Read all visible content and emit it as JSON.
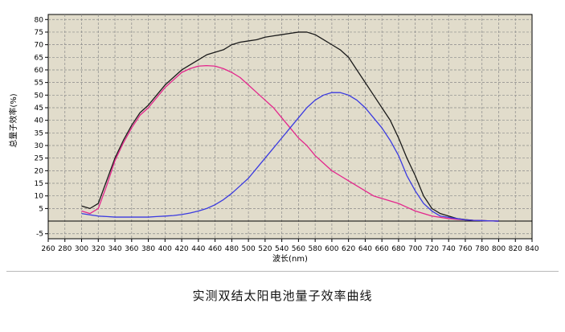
{
  "caption": "实测双结太阳电池量子效率曲线",
  "chart_data": {
    "type": "line",
    "xlabel": "波长(nm)",
    "ylabel": "总量子效率(%)",
    "xlim": [
      260,
      840
    ],
    "ylim": [
      -7,
      82
    ],
    "x_ticks": [
      260,
      280,
      300,
      320,
      340,
      360,
      380,
      400,
      420,
      440,
      460,
      480,
      500,
      520,
      540,
      560,
      580,
      600,
      620,
      640,
      660,
      680,
      700,
      720,
      740,
      760,
      780,
      800,
      820,
      840
    ],
    "y_ticks": [
      -5,
      5,
      10,
      15,
      20,
      25,
      30,
      35,
      40,
      45,
      50,
      55,
      60,
      65,
      70,
      75,
      80
    ],
    "grid": true,
    "background": "#e1dccb",
    "series": [
      {
        "color": "#1a1a1a",
        "x": [
          300,
          310,
          320,
          330,
          340,
          350,
          360,
          370,
          380,
          390,
          400,
          410,
          420,
          430,
          440,
          450,
          460,
          470,
          480,
          490,
          500,
          510,
          520,
          530,
          540,
          550,
          560,
          570,
          580,
          590,
          600,
          610,
          620,
          630,
          640,
          650,
          660,
          670,
          680,
          690,
          700,
          710,
          720,
          730,
          740,
          750,
          760,
          770,
          780,
          790,
          800
        ],
        "y": [
          6,
          5,
          7,
          16,
          25,
          32,
          38,
          43,
          46,
          50,
          54,
          57,
          60,
          62,
          64,
          66,
          67,
          68,
          70,
          71,
          71.5,
          72,
          73,
          73.5,
          74,
          74.5,
          75,
          75,
          74,
          72,
          70,
          68,
          65,
          60,
          55,
          50,
          45,
          40,
          33,
          25,
          18,
          10,
          5,
          3,
          2,
          1,
          0.6,
          0.3,
          0.2,
          0.1,
          0
        ]
      },
      {
        "color": "#e3268c",
        "x": [
          300,
          310,
          320,
          330,
          340,
          350,
          360,
          370,
          380,
          390,
          400,
          410,
          420,
          430,
          440,
          450,
          460,
          470,
          480,
          490,
          500,
          510,
          520,
          530,
          540,
          550,
          560,
          570,
          580,
          590,
          600,
          610,
          620,
          630,
          640,
          650,
          660,
          670,
          680,
          690,
          700,
          710,
          720,
          730,
          740,
          750,
          760,
          770,
          780,
          790,
          800
        ],
        "y": [
          4,
          3,
          5,
          14,
          24,
          31,
          37,
          42,
          45,
          49,
          53,
          56,
          59,
          60.5,
          61.5,
          61.7,
          61.5,
          60.5,
          59,
          57,
          54,
          51,
          48,
          45,
          41,
          37,
          33,
          30,
          26,
          23,
          20,
          18,
          16,
          14,
          12,
          10,
          9,
          8,
          7,
          5.5,
          4,
          3,
          2,
          1.5,
          1,
          0.7,
          0.5,
          0.3,
          0.2,
          0.1,
          0
        ]
      },
      {
        "color": "#3a3ae0",
        "x": [
          300,
          310,
          320,
          330,
          340,
          350,
          360,
          370,
          380,
          390,
          400,
          410,
          420,
          430,
          440,
          450,
          460,
          470,
          480,
          490,
          500,
          510,
          520,
          530,
          540,
          550,
          560,
          570,
          580,
          590,
          600,
          610,
          620,
          630,
          640,
          650,
          660,
          670,
          680,
          690,
          700,
          710,
          720,
          730,
          740,
          750,
          760,
          770,
          780,
          790,
          800
        ],
        "y": [
          3,
          2.5,
          2,
          1.8,
          1.6,
          1.6,
          1.6,
          1.6,
          1.6,
          1.8,
          2,
          2.2,
          2.6,
          3.2,
          4,
          5,
          6.5,
          8.5,
          11,
          14,
          17,
          21,
          25,
          29,
          33,
          37,
          41,
          45,
          48,
          50,
          51,
          51,
          50,
          48,
          45,
          41,
          37,
          32,
          26,
          18,
          12,
          7,
          4,
          2,
          1.5,
          1,
          0.5,
          0.3,
          0.2,
          0.1,
          0
        ]
      }
    ]
  }
}
